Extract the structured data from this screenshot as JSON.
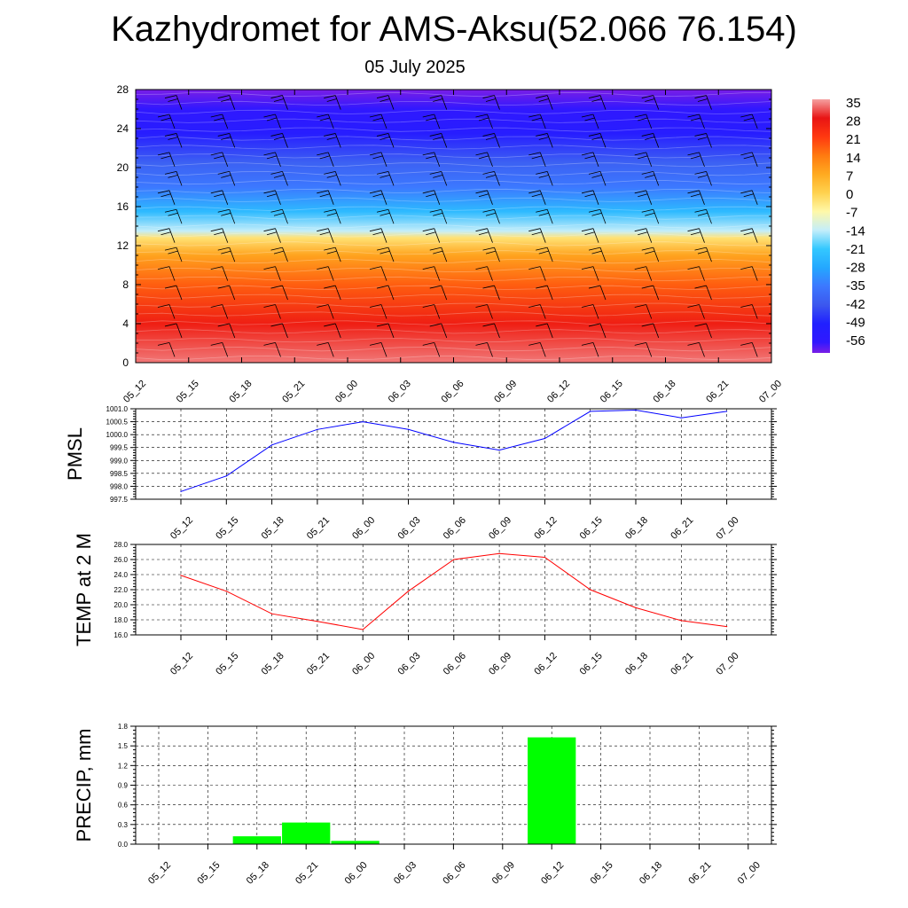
{
  "title": "Kazhydromet for AMS-Aksu(52.066 76.154)",
  "subtitle": "05 July 2025",
  "chart_data": [
    {
      "type": "heatmap",
      "id": "vertical-section",
      "x_ticks": [
        "05_12",
        "05_15",
        "05_18",
        "05_21",
        "06_00",
        "06_03",
        "06_06",
        "06_09",
        "06_12",
        "06_15",
        "06_18",
        "06_21",
        "07_00"
      ],
      "y_ticks": [
        "0",
        "4",
        "8",
        "12",
        "16",
        "20",
        "24",
        "28"
      ],
      "ylim": [
        0,
        28
      ],
      "colorbar_labels": [
        "35",
        "28",
        "21",
        "14",
        "7",
        "0",
        "-7",
        "-14",
        "-21",
        "-28",
        "-35",
        "-42",
        "-49",
        "-56"
      ],
      "temperature_profile": [
        {
          "level": 0,
          "value": 33
        },
        {
          "level": 4,
          "value": 26
        },
        {
          "level": 8,
          "value": 17
        },
        {
          "level": 11,
          "value": 8
        },
        {
          "level": 12.8,
          "value": -3
        },
        {
          "level": 13.5,
          "value": -14
        },
        {
          "level": 15.5,
          "value": -24
        },
        {
          "level": 18,
          "value": -35
        },
        {
          "level": 20.5,
          "value": -40
        },
        {
          "level": 23.5,
          "value": -52
        },
        {
          "level": 26,
          "value": -56
        },
        {
          "level": 28,
          "value": -60
        }
      ],
      "wind_barbs": true
    },
    {
      "type": "line",
      "id": "pmsl",
      "ylabel": "PMSL",
      "categories": [
        "05_12",
        "05_15",
        "05_18",
        "05_21",
        "06_00",
        "06_03",
        "06_06",
        "06_09",
        "06_12",
        "06_15",
        "06_18",
        "06_21",
        "07_00"
      ],
      "y_ticks": [
        "1001.0",
        "1000.5",
        "1000.0",
        "999.5",
        "999.0",
        "998.5",
        "998.0",
        "997.5"
      ],
      "ylim": [
        997.5,
        1001.0
      ],
      "series": [
        {
          "values": [
            997.8,
            998.4,
            999.6,
            1000.2,
            1000.5,
            1000.2,
            999.7,
            999.4,
            999.85,
            1000.9,
            1000.95,
            1000.65,
            1000.9
          ],
          "color": "#0000ff"
        }
      ],
      "grid": true
    },
    {
      "type": "line",
      "id": "temp2m",
      "ylabel": "TEMP at 2 M",
      "categories": [
        "05_12",
        "05_15",
        "05_18",
        "05_21",
        "06_00",
        "06_03",
        "06_06",
        "06_09",
        "06_12",
        "06_15",
        "06_18",
        "06_21",
        "07_00"
      ],
      "y_ticks": [
        "28.0",
        "26.0",
        "24.0",
        "22.0",
        "20.0",
        "18.0",
        "16.0"
      ],
      "ylim": [
        16.0,
        28.0
      ],
      "series": [
        {
          "values": [
            23.9,
            21.8,
            18.8,
            17.8,
            16.7,
            21.8,
            26.0,
            26.8,
            26.3,
            22.0,
            19.6,
            17.9,
            17.1
          ],
          "color": "#ff0000"
        }
      ],
      "grid": true
    },
    {
      "type": "bar",
      "id": "precip",
      "ylabel": "PRECIP, mm",
      "categories": [
        "05_12",
        "05_15",
        "05_18",
        "05_21",
        "06_00",
        "06_03",
        "06_06",
        "06_09",
        "06_12",
        "06_15",
        "06_18",
        "06_21",
        "07_00"
      ],
      "y_ticks": [
        "1.8",
        "1.5",
        "1.2",
        "0.9",
        "0.6",
        "0.3",
        "0.0"
      ],
      "ylim": [
        0.0,
        1.8
      ],
      "values": [
        0,
        0,
        0.12,
        0.33,
        0.05,
        0,
        0,
        0,
        1.63,
        0,
        0,
        0,
        0
      ],
      "color": "#00ff00",
      "grid": true
    }
  ]
}
